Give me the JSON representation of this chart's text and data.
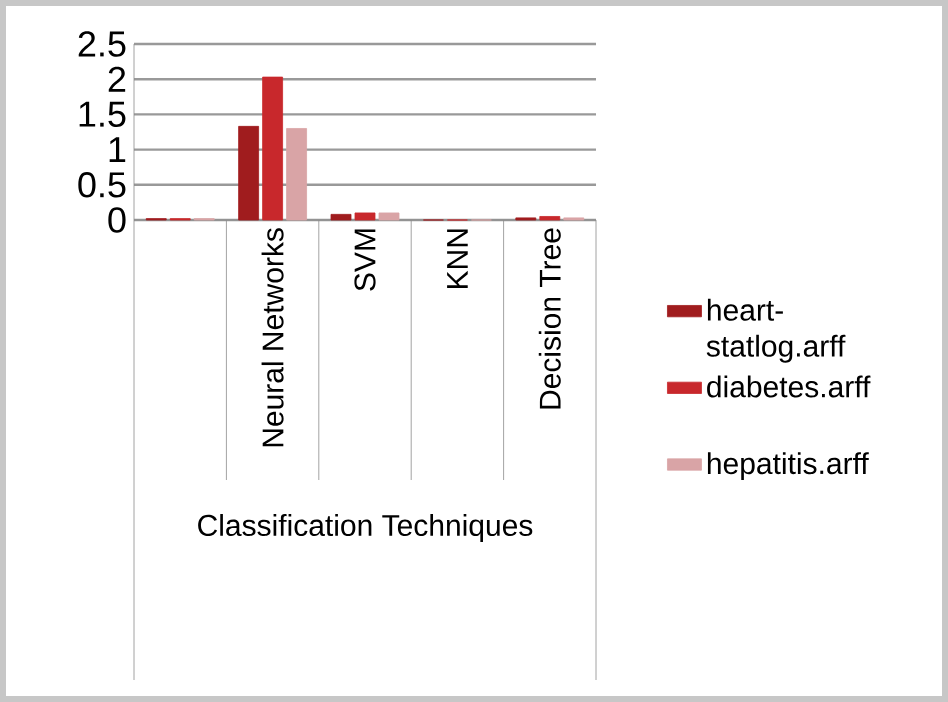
{
  "chart_data": {
    "type": "bar",
    "xlabel": "Classification Techniques",
    "categories": [
      null,
      "Neural Networks",
      "SVM",
      "KNN",
      "Decision Tree"
    ],
    "series": [
      {
        "name": "heart-statlog.arff",
        "color": "#a01c1e",
        "values": [
          0.02,
          1.33,
          0.08,
          0,
          0.03
        ]
      },
      {
        "name": "diabetes.arff",
        "color": "#c8282c",
        "values": [
          0.02,
          2.03,
          0.1,
          0,
          0.05
        ]
      },
      {
        "name": "hepatitis.arff",
        "color": "#d9a4a6",
        "values": [
          0.02,
          1.3,
          0.1,
          0,
          0.03
        ]
      }
    ],
    "ylim": [
      0,
      2.5
    ],
    "yticks": [
      0,
      0.5,
      1,
      1.5,
      2,
      2.5
    ],
    "grid": "y",
    "legend": "right"
  }
}
